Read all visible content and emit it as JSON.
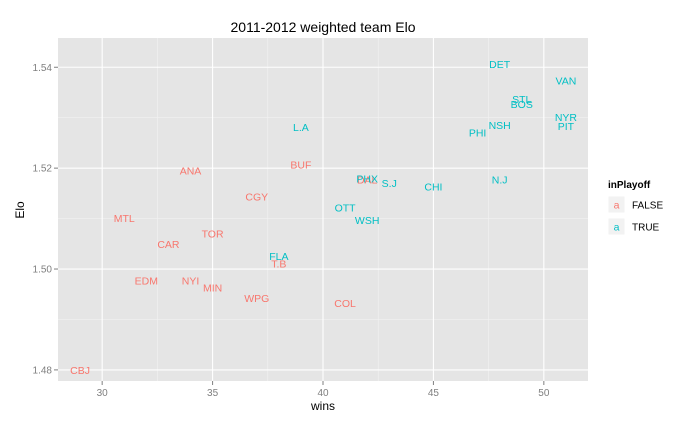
{
  "chart_data": {
    "type": "scatter",
    "title": "2011-2012 weighted team Elo",
    "xlabel": "wins",
    "ylabel": "Elo",
    "xlim": [
      28,
      52
    ],
    "ylim": [
      1.4778,
      1.5458
    ],
    "x_ticks": [
      30,
      35,
      40,
      45,
      50
    ],
    "y_ticks": [
      1.48,
      1.5,
      1.52,
      1.54
    ],
    "grid": true,
    "legend": {
      "title": "inPlayoff",
      "placement": "right",
      "symbol": "a",
      "entries": [
        {
          "label": "FALSE",
          "color": "#F8766D"
        },
        {
          "label": "TRUE",
          "color": "#00BFC4"
        }
      ]
    },
    "colors": {
      "FALSE": "#F8766D",
      "TRUE": "#00BFC4",
      "panel": "#E5E5E5",
      "grid": "#FFFFFF"
    },
    "points": [
      {
        "label": "CBJ",
        "x": 29,
        "y": 1.4799,
        "inPlayoff": "FALSE"
      },
      {
        "label": "MTL",
        "x": 31,
        "y": 1.5101,
        "inPlayoff": "FALSE"
      },
      {
        "label": "EDM",
        "x": 32,
        "y": 1.4977,
        "inPlayoff": "FALSE"
      },
      {
        "label": "CAR",
        "x": 33,
        "y": 1.5049,
        "inPlayoff": "FALSE"
      },
      {
        "label": "ANA",
        "x": 34,
        "y": 1.5195,
        "inPlayoff": "FALSE"
      },
      {
        "label": "NYI",
        "x": 34,
        "y": 1.4977,
        "inPlayoff": "FALSE"
      },
      {
        "label": "MIN",
        "x": 35,
        "y": 1.4963,
        "inPlayoff": "FALSE"
      },
      {
        "label": "TOR",
        "x": 35,
        "y": 1.507,
        "inPlayoff": "FALSE"
      },
      {
        "label": "CGY",
        "x": 37,
        "y": 1.5143,
        "inPlayoff": "FALSE"
      },
      {
        "label": "WPG",
        "x": 37,
        "y": 1.4942,
        "inPlayoff": "FALSE"
      },
      {
        "label": "T.B",
        "x": 38,
        "y": 1.5011,
        "inPlayoff": "FALSE"
      },
      {
        "label": "BUF",
        "x": 39,
        "y": 1.5207,
        "inPlayoff": "FALSE"
      },
      {
        "label": "COL",
        "x": 41,
        "y": 1.4932,
        "inPlayoff": "FALSE"
      },
      {
        "label": "DAL",
        "x": 42,
        "y": 1.5177,
        "inPlayoff": "FALSE"
      },
      {
        "label": "FLA",
        "x": 38,
        "y": 1.5025,
        "inPlayoff": "TRUE"
      },
      {
        "label": "L.A",
        "x": 39,
        "y": 1.5281,
        "inPlayoff": "TRUE"
      },
      {
        "label": "OTT",
        "x": 41,
        "y": 1.5122,
        "inPlayoff": "TRUE"
      },
      {
        "label": "PHX",
        "x": 42,
        "y": 1.5179,
        "inPlayoff": "TRUE"
      },
      {
        "label": "WSH",
        "x": 42,
        "y": 1.5097,
        "inPlayoff": "TRUE"
      },
      {
        "label": "S.J",
        "x": 43,
        "y": 1.517,
        "inPlayoff": "TRUE"
      },
      {
        "label": "CHI",
        "x": 45,
        "y": 1.5163,
        "inPlayoff": "TRUE"
      },
      {
        "label": "PHI",
        "x": 47,
        "y": 1.527,
        "inPlayoff": "TRUE"
      },
      {
        "label": "DET",
        "x": 48,
        "y": 1.5406,
        "inPlayoff": "TRUE"
      },
      {
        "label": "NSH",
        "x": 48,
        "y": 1.5285,
        "inPlayoff": "TRUE"
      },
      {
        "label": "N.J",
        "x": 48,
        "y": 1.5177,
        "inPlayoff": "TRUE"
      },
      {
        "label": "STL",
        "x": 49,
        "y": 1.5337,
        "inPlayoff": "TRUE"
      },
      {
        "label": "BOS",
        "x": 49,
        "y": 1.5327,
        "inPlayoff": "TRUE"
      },
      {
        "label": "VAN",
        "x": 51,
        "y": 1.5373,
        "inPlayoff": "TRUE"
      },
      {
        "label": "NYR",
        "x": 51,
        "y": 1.5301,
        "inPlayoff": "TRUE"
      },
      {
        "label": "PIT",
        "x": 51,
        "y": 1.5283,
        "inPlayoff": "TRUE"
      }
    ]
  }
}
